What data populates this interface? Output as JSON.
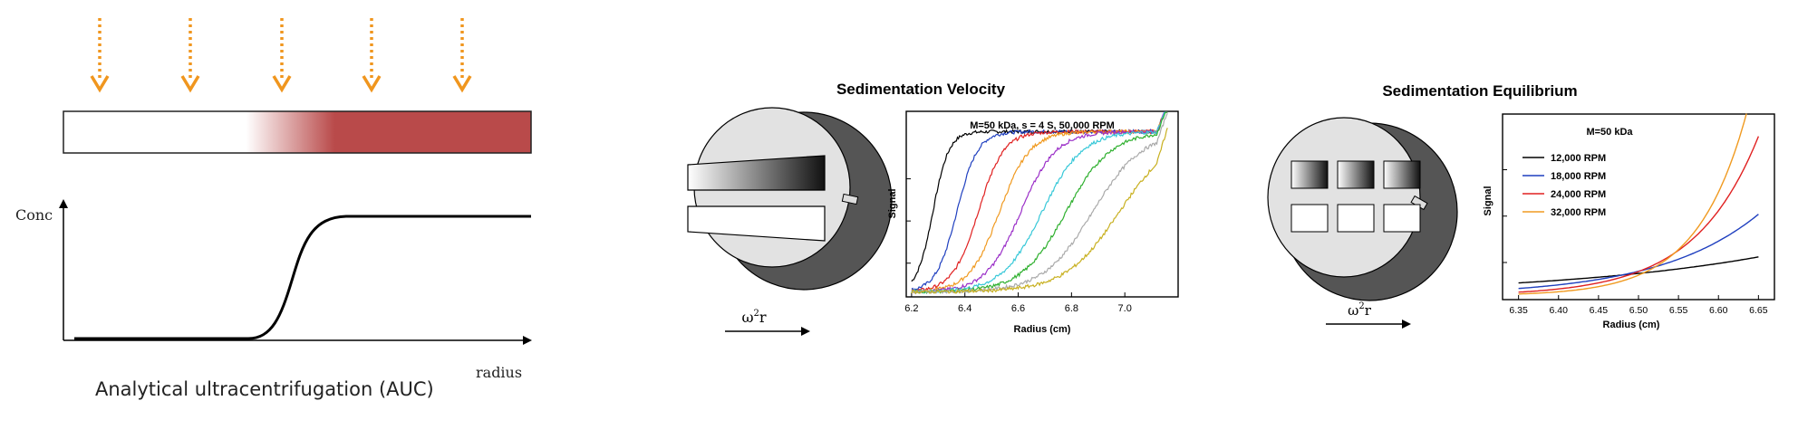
{
  "left_panel": {
    "caption": "Analytical ultracentrifugation (AUC)",
    "y_label": "Conc",
    "x_label": "radius",
    "arrow_color": "#f0961e",
    "band_color": "#b94a4a",
    "arrow_count": 5
  },
  "velocity": {
    "title": "Sedimentation Velocity",
    "rotor_label_base": "ω",
    "rotor_label_sup": "2",
    "rotor_label_tail": "r"
  },
  "equilibrium": {
    "title": "Sedimentation Equilibrium",
    "rotor_label_base": "ω",
    "rotor_label_sup": "2",
    "rotor_label_tail": "r"
  },
  "chart_data": [
    {
      "type": "line",
      "annotation": "M=50 kDa, s = 4 S, 50,000 RPM",
      "xlabel": "Radius (cm)",
      "ylabel": "Signal",
      "xlim": [
        6.18,
        7.2
      ],
      "ylim": [
        0,
        1.1
      ],
      "xticks": [
        6.2,
        6.4,
        6.6,
        6.8,
        7.0
      ],
      "xtick_labels": [
        "6.2",
        "6.4",
        "6.6",
        "6.8",
        "7.0"
      ],
      "grid": false,
      "meniscus": 6.2,
      "plateau": 0.95,
      "series": [
        {
          "color": "#000000",
          "midpoint": 6.28
        },
        {
          "color": "#1f3fbf",
          "midpoint": 6.37
        },
        {
          "color": "#e02020",
          "midpoint": 6.45
        },
        {
          "color": "#f09a20",
          "midpoint": 6.53
        },
        {
          "color": "#9b30c8",
          "midpoint": 6.61
        },
        {
          "color": "#38c8d8",
          "midpoint": 6.69
        },
        {
          "color": "#30b030",
          "midpoint": 6.78
        },
        {
          "color": "#aaaaaa",
          "midpoint": 6.88
        },
        {
          "color": "#c8b020",
          "midpoint": 6.98
        }
      ]
    },
    {
      "type": "line",
      "xlabel": "Radius (cm)",
      "ylabel": "Signal",
      "xlim": [
        6.33,
        6.67
      ],
      "ylim": [
        0,
        1.0
      ],
      "xticks": [
        6.35,
        6.4,
        6.45,
        6.5,
        6.55,
        6.6,
        6.65
      ],
      "xtick_labels": [
        "6.35",
        "6.40",
        "6.45",
        "6.50",
        "6.55",
        "6.60",
        "6.65"
      ],
      "grid": false,
      "legend_title": "M=50 kDa",
      "legend_position": "top-left",
      "series": [
        {
          "name": "12,000 RPM",
          "color": "#000000",
          "y_start": 0.07,
          "y_end": 0.21
        },
        {
          "name": "18,000 RPM",
          "color": "#1f3fbf",
          "y_start": 0.04,
          "y_end": 0.44
        },
        {
          "name": "24,000 RPM",
          "color": "#e02020",
          "y_start": 0.02,
          "y_end": 0.86
        },
        {
          "name": "32,000 RPM",
          "color": "#f09a20",
          "y_start": 0.01,
          "y_end": 1.25
        }
      ]
    }
  ]
}
